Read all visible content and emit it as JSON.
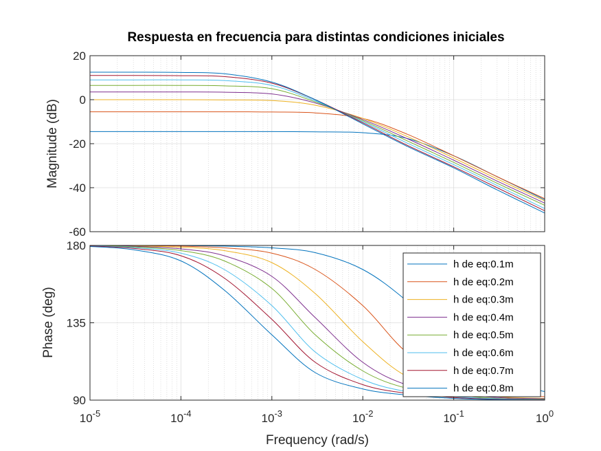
{
  "chart_data": {
    "type": "line",
    "title": "Respuesta en frecuencia para distintas condiciones iniciales",
    "xlabel": "Frequency  (rad/s)",
    "x_scale": "log",
    "xlim": [
      1e-05,
      1
    ],
    "x_ticks": [
      "10^-5",
      "10^-4",
      "10^-3",
      "10^-2",
      "10^-1",
      "10^0"
    ],
    "grid": true,
    "legend_position": "bottom-right (phase panel)",
    "x": [
      1e-05,
      3e-05,
      0.0001,
      0.0003,
      0.001,
      0.003,
      0.01,
      0.03,
      0.1,
      0.3,
      1
    ],
    "magnitude": {
      "ylabel": "Magnitude (dB)",
      "ylim": [
        -60,
        20
      ],
      "y_ticks": [
        "20",
        "0",
        "-20",
        "-40",
        "-60"
      ],
      "series": [
        {
          "name": "h de eq:0.1m",
          "color": "#0072BD",
          "values": [
            -14.5,
            -14.5,
            -14.5,
            -14.5,
            -14.5,
            -14.6,
            -15.0,
            -17.5,
            -25.5,
            -35.0,
            -45.5
          ]
        },
        {
          "name": "h de eq:0.2m",
          "color": "#D95319",
          "values": [
            -5.5,
            -5.5,
            -5.5,
            -5.5,
            -5.6,
            -6.0,
            -8.5,
            -15.5,
            -25.5,
            -35.0,
            -45.0
          ]
        },
        {
          "name": "h de eq:0.3m",
          "color": "#EDB120",
          "values": [
            0.0,
            0.0,
            0.0,
            -0.1,
            -0.4,
            -2.5,
            -8.5,
            -16.5,
            -26.5,
            -36.0,
            -46.0
          ]
        },
        {
          "name": "h de eq:0.4m",
          "color": "#7E2F8E",
          "values": [
            3.5,
            3.5,
            3.5,
            3.4,
            2.6,
            -1.5,
            -9.0,
            -17.5,
            -27.5,
            -37.0,
            -47.0
          ]
        },
        {
          "name": "h de eq:0.5m",
          "color": "#77AC30",
          "values": [
            6.5,
            6.5,
            6.5,
            6.3,
            5.0,
            -1.0,
            -9.5,
            -18.5,
            -28.5,
            -38.0,
            -48.0
          ]
        },
        {
          "name": "h de eq:0.6m",
          "color": "#4DBEEE",
          "values": [
            9.0,
            9.0,
            9.0,
            8.7,
            6.5,
            -0.5,
            -10.0,
            -19.5,
            -29.5,
            -39.0,
            -49.5
          ]
        },
        {
          "name": "h de eq:0.7m",
          "color": "#A2142F",
          "values": [
            11.0,
            11.0,
            10.9,
            10.5,
            7.5,
            0.0,
            -10.5,
            -20.5,
            -30.5,
            -40.0,
            -50.5
          ]
        },
        {
          "name": "h de eq:0.8m",
          "color": "#0072BD",
          "values": [
            12.5,
            12.5,
            12.4,
            11.8,
            8.0,
            0.0,
            -11.0,
            -21.0,
            -31.0,
            -41.0,
            -51.5
          ]
        }
      ]
    },
    "phase": {
      "ylabel": "Phase (deg)",
      "ylim": [
        90,
        180
      ],
      "y_ticks": [
        "180",
        "135",
        "90"
      ],
      "series": [
        {
          "name": "h de eq:0.1m",
          "color": "#0072BD",
          "values": [
            180.0,
            180.0,
            179.9,
            179.6,
            178.6,
            175.8,
            166.0,
            148.0,
            122.0,
            102.0,
            95.0
          ]
        },
        {
          "name": "h de eq:0.2m",
          "color": "#D95319",
          "values": [
            180.0,
            179.9,
            179.6,
            178.6,
            175.5,
            166.0,
            145.0,
            118.0,
            101.0,
            94.0,
            92.0
          ]
        },
        {
          "name": "h de eq:0.3m",
          "color": "#EDB120",
          "values": [
            180.0,
            179.7,
            179.0,
            177.0,
            170.0,
            152.0,
            124.0,
            104.0,
            95.5,
            92.0,
            91.0
          ]
        },
        {
          "name": "h de eq:0.4m",
          "color": "#7E2F8E",
          "values": [
            179.9,
            179.5,
            178.0,
            174.0,
            162.0,
            138.0,
            112.0,
            99.0,
            94.0,
            91.5,
            90.8
          ]
        },
        {
          "name": "h de eq:0.5m",
          "color": "#77AC30",
          "values": [
            179.8,
            179.2,
            177.0,
            171.0,
            155.0,
            128.0,
            107.0,
            97.0,
            93.0,
            91.0,
            90.5
          ]
        },
        {
          "name": "h de eq:0.6m",
          "color": "#4DBEEE",
          "values": [
            179.7,
            178.8,
            175.5,
            166.0,
            145.0,
            118.0,
            102.0,
            95.0,
            92.0,
            90.8,
            90.3
          ]
        },
        {
          "name": "h de eq:0.7m",
          "color": "#A2142F",
          "values": [
            179.6,
            178.3,
            174.0,
            161.0,
            137.0,
            112.0,
            99.0,
            94.0,
            91.5,
            90.5,
            90.2
          ]
        },
        {
          "name": "h de eq:0.8m",
          "color": "#0072BD",
          "values": [
            179.4,
            177.5,
            171.0,
            154.0,
            128.0,
            106.0,
            96.5,
            93.0,
            91.0,
            90.3,
            90.1
          ]
        }
      ]
    }
  }
}
